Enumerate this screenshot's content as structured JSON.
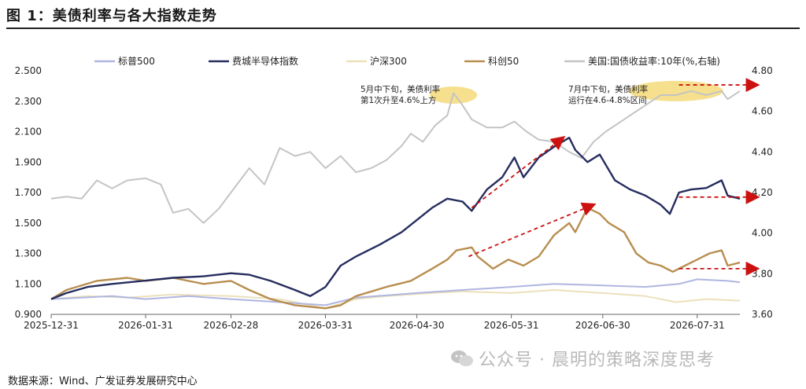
{
  "header": {
    "title": "图 1：美债利率与各大指数走势"
  },
  "footer": {
    "source": "数据来源：Wind、广发证券发展研究中心",
    "watermark": "公众号 · 晨明的策略深度思考"
  },
  "colors": {
    "sp500": "#b0b6e0",
    "sox": "#262d5e",
    "hs300": "#ece0bc",
    "star50": "#b88e4f",
    "ust10y": "#c4c4c4",
    "arrow": "#cc1111",
    "highlight": "#f5db7a"
  },
  "chart_data": {
    "type": "line",
    "x": [
      "2025-12-31",
      "2026-01-31",
      "2026-02-28",
      "2026-03-31",
      "2026-04-30",
      "2026-05-31",
      "2026-06-30",
      "2026-07-31"
    ],
    "ylim_left": [
      0.9,
      2.5
    ],
    "ylim_right": [
      3.6,
      4.8
    ],
    "yticks_left": [
      "0.900",
      "1.100",
      "1.300",
      "1.500",
      "1.700",
      "1.900",
      "2.100",
      "2.300",
      "2.500"
    ],
    "yticks_right": [
      "3.60",
      "3.80",
      "4.00",
      "4.20",
      "4.40",
      "4.60",
      "4.80"
    ],
    "legend": [
      "标普500",
      "费城半导体指数",
      "沪深300",
      "科创50",
      "美国:国债收益率:10年(%,右轴)"
    ],
    "series": [
      {
        "name": "标普500",
        "axis": "left",
        "color": "#b0b6e0",
        "points": [
          [
            0,
            1.0
          ],
          [
            10,
            1.01
          ],
          [
            20,
            1.02
          ],
          [
            31,
            1.0
          ],
          [
            45,
            1.02
          ],
          [
            59,
            1.0
          ],
          [
            75,
            0.98
          ],
          [
            90,
            0.96
          ],
          [
            100,
            1.01
          ],
          [
            120,
            1.04
          ],
          [
            135,
            1.06
          ],
          [
            151,
            1.08
          ],
          [
            165,
            1.1
          ],
          [
            181,
            1.09
          ],
          [
            195,
            1.08
          ],
          [
            206,
            1.1
          ],
          [
            212,
            1.13
          ],
          [
            222,
            1.12
          ],
          [
            226,
            1.11
          ]
        ]
      },
      {
        "name": "费城半导体指数",
        "axis": "left",
        "color": "#262d5e",
        "points": [
          [
            0,
            1.0
          ],
          [
            5,
            1.04
          ],
          [
            12,
            1.08
          ],
          [
            20,
            1.1
          ],
          [
            30,
            1.12
          ],
          [
            40,
            1.14
          ],
          [
            50,
            1.15
          ],
          [
            59,
            1.17
          ],
          [
            65,
            1.16
          ],
          [
            72,
            1.12
          ],
          [
            80,
            1.06
          ],
          [
            85,
            1.02
          ],
          [
            90,
            1.08
          ],
          [
            95,
            1.22
          ],
          [
            100,
            1.28
          ],
          [
            108,
            1.36
          ],
          [
            115,
            1.44
          ],
          [
            120,
            1.52
          ],
          [
            125,
            1.6
          ],
          [
            130,
            1.66
          ],
          [
            135,
            1.64
          ],
          [
            138,
            1.58
          ],
          [
            143,
            1.72
          ],
          [
            148,
            1.8
          ],
          [
            152,
            1.93
          ],
          [
            155,
            1.8
          ],
          [
            160,
            1.93
          ],
          [
            165,
            2.0
          ],
          [
            170,
            2.06
          ],
          [
            172,
            1.98
          ],
          [
            176,
            1.9
          ],
          [
            180,
            1.95
          ],
          [
            185,
            1.78
          ],
          [
            190,
            1.72
          ],
          [
            195,
            1.68
          ],
          [
            200,
            1.62
          ],
          [
            203,
            1.56
          ],
          [
            206,
            1.7
          ],
          [
            210,
            1.72
          ],
          [
            215,
            1.73
          ],
          [
            220,
            1.78
          ],
          [
            222,
            1.68
          ],
          [
            226,
            1.66
          ]
        ]
      },
      {
        "name": "沪深300",
        "axis": "left",
        "color": "#ece0bc",
        "points": [
          [
            0,
            1.0
          ],
          [
            12,
            1.02
          ],
          [
            25,
            1.01
          ],
          [
            40,
            1.03
          ],
          [
            59,
            1.02
          ],
          [
            75,
            1.0
          ],
          [
            90,
            0.94
          ],
          [
            100,
            1.0
          ],
          [
            110,
            1.02
          ],
          [
            125,
            1.04
          ],
          [
            135,
            1.05
          ],
          [
            151,
            1.04
          ],
          [
            165,
            1.06
          ],
          [
            181,
            1.04
          ],
          [
            195,
            1.02
          ],
          [
            205,
            0.98
          ],
          [
            215,
            1.0
          ],
          [
            226,
            0.99
          ]
        ]
      },
      {
        "name": "科创50",
        "axis": "left",
        "color": "#b88e4f",
        "points": [
          [
            0,
            1.0
          ],
          [
            5,
            1.06
          ],
          [
            15,
            1.12
          ],
          [
            25,
            1.14
          ],
          [
            31,
            1.12
          ],
          [
            40,
            1.14
          ],
          [
            50,
            1.1
          ],
          [
            59,
            1.12
          ],
          [
            65,
            1.06
          ],
          [
            72,
            1.0
          ],
          [
            80,
            0.96
          ],
          [
            90,
            0.94
          ],
          [
            95,
            0.96
          ],
          [
            100,
            1.02
          ],
          [
            110,
            1.08
          ],
          [
            118,
            1.12
          ],
          [
            125,
            1.2
          ],
          [
            130,
            1.26
          ],
          [
            133,
            1.32
          ],
          [
            138,
            1.34
          ],
          [
            140,
            1.28
          ],
          [
            145,
            1.2
          ],
          [
            150,
            1.26
          ],
          [
            155,
            1.22
          ],
          [
            160,
            1.28
          ],
          [
            165,
            1.42
          ],
          [
            170,
            1.5
          ],
          [
            172,
            1.44
          ],
          [
            176,
            1.6
          ],
          [
            180,
            1.56
          ],
          [
            183,
            1.5
          ],
          [
            188,
            1.44
          ],
          [
            192,
            1.3
          ],
          [
            196,
            1.24
          ],
          [
            200,
            1.22
          ],
          [
            204,
            1.18
          ],
          [
            208,
            1.22
          ],
          [
            212,
            1.26
          ],
          [
            216,
            1.3
          ],
          [
            220,
            1.32
          ],
          [
            222,
            1.22
          ],
          [
            226,
            1.24
          ]
        ]
      },
      {
        "name": "美国:国债收益率:10年(%,右轴)",
        "axis": "right",
        "color": "#c4c4c4",
        "points": [
          [
            0,
            4.17
          ],
          [
            5,
            4.18
          ],
          [
            10,
            4.17
          ],
          [
            15,
            4.26
          ],
          [
            20,
            4.22
          ],
          [
            25,
            4.26
          ],
          [
            31,
            4.27
          ],
          [
            36,
            4.24
          ],
          [
            40,
            4.1
          ],
          [
            45,
            4.12
          ],
          [
            50,
            4.05
          ],
          [
            55,
            4.12
          ],
          [
            59,
            4.2
          ],
          [
            65,
            4.32
          ],
          [
            70,
            4.24
          ],
          [
            75,
            4.42
          ],
          [
            80,
            4.38
          ],
          [
            85,
            4.4
          ],
          [
            90,
            4.32
          ],
          [
            95,
            4.38
          ],
          [
            100,
            4.3
          ],
          [
            105,
            4.32
          ],
          [
            110,
            4.36
          ],
          [
            115,
            4.43
          ],
          [
            118,
            4.49
          ],
          [
            122,
            4.45
          ],
          [
            126,
            4.53
          ],
          [
            130,
            4.58
          ],
          [
            132,
            4.69
          ],
          [
            135,
            4.63
          ],
          [
            138,
            4.56
          ],
          [
            143,
            4.52
          ],
          [
            148,
            4.52
          ],
          [
            152,
            4.55
          ],
          [
            156,
            4.5
          ],
          [
            160,
            4.46
          ],
          [
            165,
            4.45
          ],
          [
            170,
            4.4
          ],
          [
            174,
            4.37
          ],
          [
            178,
            4.45
          ],
          [
            182,
            4.5
          ],
          [
            186,
            4.54
          ],
          [
            190,
            4.58
          ],
          [
            195,
            4.63
          ],
          [
            200,
            4.68
          ],
          [
            205,
            4.68
          ],
          [
            210,
            4.7
          ],
          [
            215,
            4.68
          ],
          [
            220,
            4.7
          ],
          [
            222,
            4.66
          ],
          [
            226,
            4.7
          ]
        ]
      }
    ],
    "annotations": [
      {
        "text": "5月中下旬，美债利率",
        "text2": "第1次升至4.6%上方"
      },
      {
        "text": "7月中下旬，美债利率",
        "text2": "运行在4.6-4.8%区间"
      }
    ]
  }
}
